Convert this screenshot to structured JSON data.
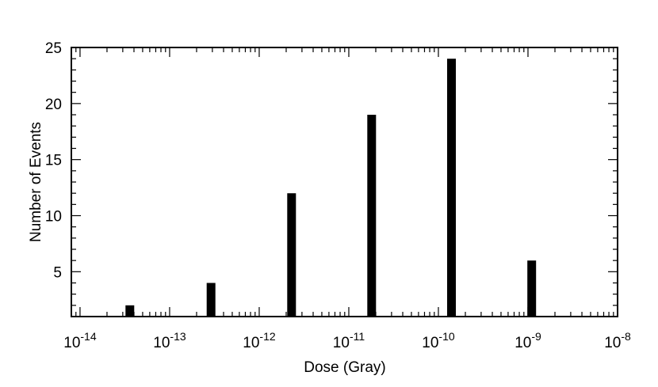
{
  "chart_data": {
    "type": "bar",
    "title": "",
    "xlabel": "Dose (Gray)",
    "ylabel": "Number of Events",
    "x_scale": "log",
    "xlim": [
      8e-15,
      1e-08
    ],
    "ylim": [
      1,
      25
    ],
    "x": [
      3.6e-14,
      2.9e-13,
      2.3e-12,
      1.8e-11,
      1.4e-10,
      1.1e-09
    ],
    "values": [
      2,
      4,
      12,
      19,
      24,
      6
    ],
    "bar_color": "#000000",
    "x_ticks": [
      {
        "value": 1e-14,
        "base": "10",
        "exp": "-14"
      },
      {
        "value": 1e-13,
        "base": "10",
        "exp": "-13"
      },
      {
        "value": 1e-12,
        "base": "10",
        "exp": "-12"
      },
      {
        "value": 1e-11,
        "base": "10",
        "exp": "-11"
      },
      {
        "value": 1e-10,
        "base": "10",
        "exp": "-10"
      },
      {
        "value": 1e-09,
        "base": "10",
        "exp": "-9"
      },
      {
        "value": 1e-08,
        "base": "10",
        "exp": "-8"
      }
    ],
    "y_ticks": [
      {
        "value": 5,
        "label": "5"
      },
      {
        "value": 10,
        "label": "10"
      },
      {
        "value": 15,
        "label": "15"
      },
      {
        "value": 20,
        "label": "20"
      },
      {
        "value": 25,
        "label": "25"
      }
    ],
    "grid": false,
    "legend": "none"
  }
}
